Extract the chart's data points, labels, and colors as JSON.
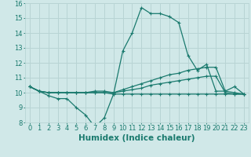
{
  "xlabel": "Humidex (Indice chaleur)",
  "ylabel": "",
  "x_hours": [
    0,
    1,
    2,
    3,
    4,
    5,
    6,
    7,
    8,
    9,
    10,
    11,
    12,
    13,
    14,
    15,
    16,
    17,
    18,
    19,
    20,
    21,
    22,
    23
  ],
  "line1": [
    10.4,
    10.1,
    9.8,
    9.6,
    9.6,
    9.0,
    8.5,
    7.7,
    8.3,
    9.9,
    12.8,
    14.0,
    15.7,
    15.3,
    15.3,
    15.1,
    14.7,
    12.5,
    11.5,
    11.9,
    10.1,
    10.1,
    10.4,
    9.9
  ],
  "line2": [
    10.4,
    10.1,
    10.0,
    10.0,
    10.0,
    10.0,
    10.0,
    10.1,
    10.1,
    10.0,
    10.2,
    10.4,
    10.6,
    10.8,
    11.0,
    11.2,
    11.3,
    11.5,
    11.6,
    11.7,
    11.7,
    10.1,
    10.0,
    9.9
  ],
  "line3": [
    10.4,
    10.1,
    10.0,
    10.0,
    10.0,
    10.0,
    10.0,
    10.0,
    10.0,
    10.0,
    10.1,
    10.2,
    10.3,
    10.5,
    10.6,
    10.7,
    10.8,
    10.9,
    11.0,
    11.1,
    11.1,
    10.0,
    9.9,
    9.9
  ],
  "line4": [
    10.4,
    10.1,
    10.0,
    10.0,
    10.0,
    10.0,
    10.0,
    10.0,
    10.0,
    9.9,
    9.9,
    9.9,
    9.9,
    9.9,
    9.9,
    9.9,
    9.9,
    9.9,
    9.9,
    9.9,
    9.9,
    9.9,
    9.9,
    9.9
  ],
  "ylim": [
    8,
    16
  ],
  "xlim": [
    -0.5,
    23.5
  ],
  "yticks": [
    8,
    9,
    10,
    11,
    12,
    13,
    14,
    15,
    16
  ],
  "xticks": [
    0,
    1,
    2,
    3,
    4,
    5,
    6,
    7,
    8,
    9,
    10,
    11,
    12,
    13,
    14,
    15,
    16,
    17,
    18,
    19,
    20,
    21,
    22,
    23
  ],
  "line_color": "#1a7a6e",
  "bg_color": "#d0e8e8",
  "grid_color": "#b8d4d4",
  "tick_label_fontsize": 6.0,
  "xlabel_fontsize": 7.5
}
